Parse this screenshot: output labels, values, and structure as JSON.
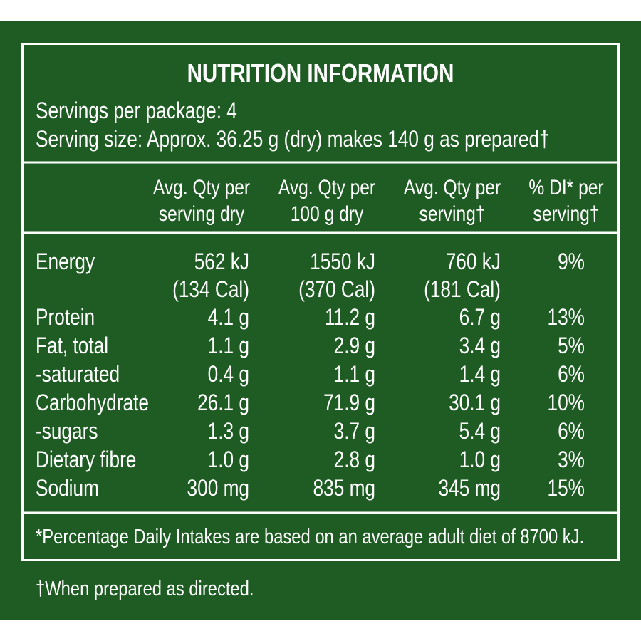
{
  "title": "NUTRITION INFORMATION",
  "servings_per_package": "Servings per package: 4",
  "serving_size": "Serving size: Approx. 36.25 g (dry) makes 140 g as prepared†",
  "table": {
    "header": [
      [
        "Avg. Qty per",
        "serving dry"
      ],
      [
        "Avg. Qty per",
        "100 g dry"
      ],
      [
        "Avg. Qty per",
        "serving†"
      ],
      [
        "% DI* per",
        "serving†"
      ]
    ],
    "rows": [
      [
        "Energy",
        [
          "562 kJ",
          "(134 Cal)"
        ],
        [
          "1550 kJ",
          "(370 Cal)"
        ],
        [
          "760 kJ",
          "(181 Cal)"
        ],
        "9%"
      ],
      [
        "Protein",
        "4.1 g",
        "11.2 g",
        "6.7 g",
        "13%"
      ],
      [
        "Fat, total",
        "1.1 g",
        "2.9 g",
        "3.4 g",
        "5%"
      ],
      [
        "-saturated",
        "0.4 g",
        "1.1 g",
        "1.4 g",
        "6%"
      ],
      [
        "Carbohydrate",
        "26.1 g",
        "71.9 g",
        "30.1 g",
        "10%"
      ],
      [
        "-sugars",
        "1.3 g",
        "3.7 g",
        "5.4 g",
        "6%"
      ],
      [
        "Dietary fibre",
        "1.0 g",
        "2.8 g",
        "1.0 g",
        "3%"
      ],
      [
        "Sodium",
        "300 mg",
        "835 mg",
        "345 mg",
        "15%"
      ]
    ]
  },
  "di_note": "*Percentage Daily Intakes are based on an average adult diet of 8700 kJ.",
  "prepared_note": "†When prepared as directed."
}
